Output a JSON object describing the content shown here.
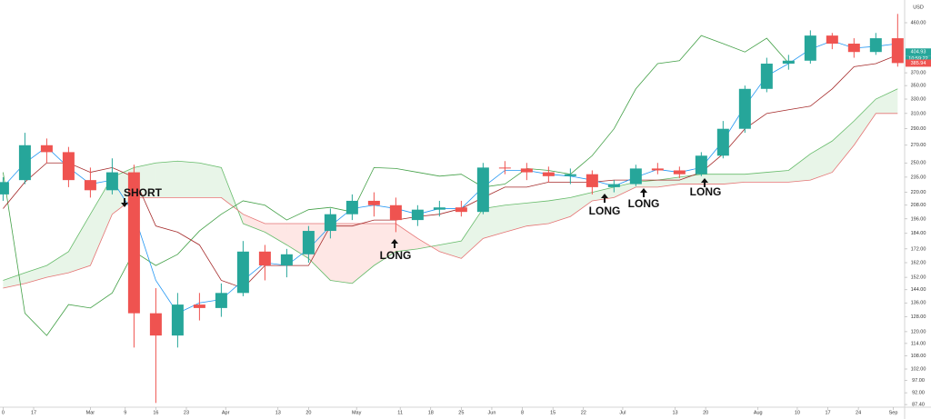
{
  "chart_data": {
    "type": "candlestick",
    "currency": "USD",
    "log_scale": true,
    "xlim": [
      -7.71,
      199.6
    ],
    "ylim": [
      86.4,
      507.8
    ],
    "xticks": [
      {
        "value": -7,
        "label": "0"
      },
      {
        "value": 0,
        "label": "17"
      },
      {
        "value": 13,
        "label": "Mar"
      },
      {
        "value": 21,
        "label": "9"
      },
      {
        "value": 28,
        "label": "16"
      },
      {
        "value": 35,
        "label": "23"
      },
      {
        "value": 44,
        "label": "Apr"
      },
      {
        "value": 56,
        "label": "13"
      },
      {
        "value": 63,
        "label": "20"
      },
      {
        "value": 74,
        "label": "May"
      },
      {
        "value": 84,
        "label": "11"
      },
      {
        "value": 91,
        "label": "18"
      },
      {
        "value": 98,
        "label": "25"
      },
      {
        "value": 105,
        "label": "Jun"
      },
      {
        "value": 112,
        "label": "8"
      },
      {
        "value": 119,
        "label": "15"
      },
      {
        "value": 126,
        "label": "22"
      },
      {
        "value": 135,
        "label": "Jul"
      },
      {
        "value": 147,
        "label": "13"
      },
      {
        "value": 154,
        "label": "20"
      },
      {
        "value": 166,
        "label": "Aug"
      },
      {
        "value": 175,
        "label": "10"
      },
      {
        "value": 182,
        "label": "17"
      },
      {
        "value": 189,
        "label": "24"
      },
      {
        "value": 197,
        "label": "Sep"
      }
    ],
    "yticks": [
      {
        "value": 460,
        "label": "460.00"
      },
      {
        "value": 370,
        "label": "370.00"
      },
      {
        "value": 350,
        "label": "350.00"
      },
      {
        "value": 330,
        "label": "330.00"
      },
      {
        "value": 310,
        "label": "310.00"
      },
      {
        "value": 290,
        "label": "290.00"
      },
      {
        "value": 270,
        "label": "270.00"
      },
      {
        "value": 250,
        "label": "250.00"
      },
      {
        "value": 235,
        "label": "235.00"
      },
      {
        "value": 220,
        "label": "220.00"
      },
      {
        "value": 208,
        "label": "208.00"
      },
      {
        "value": 196,
        "label": "196.00"
      },
      {
        "value": 184,
        "label": "184.00"
      },
      {
        "value": 172,
        "label": "172.00"
      },
      {
        "value": 162,
        "label": "162.00"
      },
      {
        "value": 152,
        "label": "152.00"
      },
      {
        "value": 144,
        "label": "144.00"
      },
      {
        "value": 136,
        "label": "136.00"
      },
      {
        "value": 128,
        "label": "128.00"
      },
      {
        "value": 120,
        "label": "120.00"
      },
      {
        "value": 114,
        "label": "114.00"
      },
      {
        "value": 108,
        "label": "108.00"
      },
      {
        "value": 102,
        "label": "102.00"
      },
      {
        "value": 97,
        "label": "97.00"
      },
      {
        "value": 92,
        "label": "92.00"
      },
      {
        "value": 87.4,
        "label": "87.40"
      }
    ],
    "x": [
      -7,
      -2,
      3,
      8,
      13,
      18,
      23,
      28,
      33,
      38,
      43,
      48,
      53,
      58,
      63,
      68,
      73,
      78,
      83,
      88,
      93,
      98,
      103,
      108,
      113,
      118,
      123,
      128,
      133,
      138,
      143,
      148,
      153,
      158,
      163,
      168,
      173,
      178,
      183,
      188,
      193,
      198
    ],
    "open": [
      218,
      232,
      270,
      262,
      232,
      222,
      240,
      130,
      118,
      135,
      133,
      142,
      170,
      160,
      168,
      186,
      200,
      212,
      208,
      195,
      204,
      206,
      202,
      245,
      244,
      240,
      236,
      238,
      225,
      228,
      244,
      242,
      238,
      258,
      290,
      345,
      385,
      390,
      435,
      420,
      405,
      430
    ],
    "high": [
      235,
      285,
      278,
      268,
      245,
      255,
      248,
      145,
      142,
      142,
      148,
      178,
      175,
      172,
      190,
      205,
      218,
      220,
      215,
      208,
      212,
      212,
      250,
      252,
      250,
      246,
      244,
      242,
      232,
      248,
      250,
      246,
      262,
      300,
      350,
      395,
      400,
      445,
      440,
      430,
      440,
      478
    ],
    "low": [
      212,
      228,
      250,
      225,
      215,
      218,
      112,
      88,
      112,
      126,
      128,
      140,
      150,
      152,
      162,
      180,
      195,
      198,
      185,
      190,
      198,
      198,
      200,
      238,
      232,
      230,
      228,
      218,
      220,
      226,
      238,
      234,
      236,
      255,
      285,
      340,
      375,
      385,
      410,
      395,
      400,
      380
    ],
    "close": [
      230,
      270,
      262,
      232,
      222,
      240,
      130,
      118,
      135,
      133,
      142,
      170,
      160,
      168,
      186,
      200,
      212,
      208,
      195,
      204,
      206,
      202,
      245,
      244,
      240,
      236,
      238,
      225,
      228,
      244,
      242,
      238,
      258,
      290,
      345,
      385,
      390,
      435,
      420,
      405,
      430,
      386
    ],
    "up_color": "#26a69a",
    "down_color": "#ef5350",
    "tenkan": {
      "color": "#2196f3",
      "values": [
        225,
        250,
        268,
        245,
        228,
        232,
        200,
        150,
        130,
        136,
        138,
        150,
        162,
        160,
        172,
        190,
        205,
        208,
        205,
        200,
        205,
        205,
        225,
        242,
        242,
        238,
        236,
        232,
        226,
        235,
        243,
        240,
        245,
        275,
        320,
        365,
        385,
        410,
        425,
        412,
        415,
        420
      ]
    },
    "kijun": {
      "color": "#a52a2a",
      "values": [
        205,
        230,
        250,
        250,
        240,
        245,
        235,
        190,
        185,
        175,
        150,
        145,
        160,
        160,
        160,
        190,
        190,
        195,
        195,
        198,
        200,
        205,
        215,
        225,
        225,
        230,
        230,
        230,
        232,
        232,
        232,
        232,
        240,
        260,
        290,
        310,
        315,
        320,
        345,
        380,
        385,
        400
      ]
    },
    "lagging": {
      "color": "#43a047",
      "values": [
        240,
        130,
        118,
        135,
        133,
        142,
        170,
        160,
        168,
        186,
        200,
        212,
        208,
        195,
        204,
        206,
        202,
        245,
        244,
        240,
        236,
        238,
        225,
        228,
        244,
        242,
        238,
        258,
        290,
        345,
        385,
        390,
        435,
        420,
        405,
        430,
        386,
        null,
        null,
        null,
        null,
        null
      ]
    },
    "span_a": {
      "color": "#66bb6a",
      "values": [
        150,
        155,
        160,
        170,
        200,
        235,
        245,
        250,
        252,
        250,
        245,
        192,
        185,
        175,
        165,
        150,
        148,
        160,
        170,
        172,
        175,
        178,
        205,
        208,
        210,
        212,
        215,
        220,
        225,
        230,
        232,
        235,
        238,
        238,
        238,
        240,
        242,
        260,
        275,
        300,
        330,
        345
      ]
    },
    "span_b": {
      "color": "#e57373",
      "values": [
        145,
        148,
        152,
        155,
        160,
        200,
        215,
        215,
        215,
        215,
        215,
        200,
        192,
        192,
        192,
        192,
        192,
        192,
        192,
        180,
        170,
        165,
        180,
        185,
        190,
        192,
        198,
        212,
        215,
        225,
        225,
        228,
        228,
        228,
        230,
        230,
        230,
        232,
        240,
        270,
        310,
        310
      ]
    },
    "cloud_up_color": "rgba(76,175,80,0.13)",
    "cloud_down_color": "rgba(244,67,54,0.13)",
    "annotations": [
      {
        "text": "SHORT",
        "direction": "down"
      },
      {
        "text": "LONG",
        "direction": "up"
      },
      {
        "text": "LONG",
        "direction": "up"
      },
      {
        "text": "LONG",
        "direction": "up"
      },
      {
        "text": "LONG",
        "direction": "up"
      }
    ],
    "price_tags": [
      {
        "value": 404.93,
        "color": "#26a69a"
      },
      {
        "value": 385.94,
        "color": "#ef5350"
      }
    ],
    "clock": "10:59:22"
  }
}
